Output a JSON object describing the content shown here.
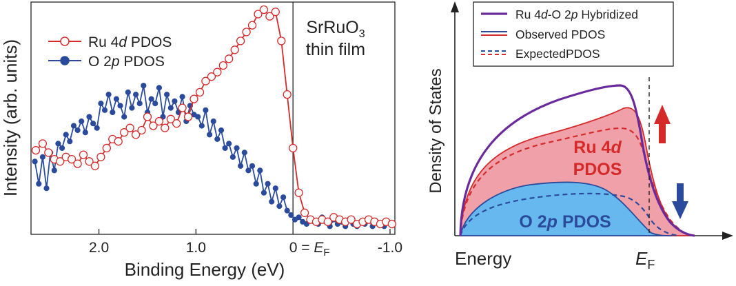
{
  "chart_data": [
    {
      "type": "scatter",
      "ylabel": "Intensity (arb. units)",
      "xlabel": "Binding Energy (eV)",
      "xlim": [
        2.7,
        -1.05
      ],
      "ylim": [
        0,
        1.0
      ],
      "annotation_line1": "SrRuO",
      "annotation_sub": "3",
      "annotation_line2": "thin film",
      "ef_label_prefix": "0 = ",
      "ef_label_E": "E",
      "ef_label_F": "F",
      "xticks": [
        {
          "value": 2.0,
          "label": "2.0"
        },
        {
          "value": 1.0,
          "label": "1.0"
        },
        {
          "value": -1.0,
          "label": "-1.0"
        }
      ],
      "series": [
        {
          "name_prefix": "Ru 4",
          "name_italic": "d",
          "name_suffix": " PDOS",
          "color": "#d42a2a",
          "marker": "open-circle",
          "x": [
            2.65,
            2.58,
            2.52,
            2.46,
            2.4,
            2.34,
            2.28,
            2.22,
            2.16,
            2.1,
            2.04,
            1.98,
            1.92,
            1.86,
            1.8,
            1.74,
            1.68,
            1.62,
            1.56,
            1.5,
            1.44,
            1.38,
            1.32,
            1.26,
            1.2,
            1.14,
            1.08,
            1.02,
            0.96,
            0.9,
            0.84,
            0.78,
            0.72,
            0.66,
            0.6,
            0.54,
            0.48,
            0.42,
            0.36,
            0.3,
            0.24,
            0.18,
            0.12,
            0.06,
            0.0,
            -0.06,
            -0.12,
            -0.18,
            -0.24,
            -0.3,
            -0.36,
            -0.42,
            -0.48,
            -0.54,
            -0.6,
            -0.66,
            -0.72,
            -0.78,
            -0.84,
            -0.9,
            -0.96,
            -1.02
          ],
          "y": [
            0.37,
            0.4,
            0.36,
            0.33,
            0.32,
            0.34,
            0.33,
            0.31,
            0.35,
            0.32,
            0.3,
            0.34,
            0.38,
            0.42,
            0.41,
            0.45,
            0.47,
            0.44,
            0.46,
            0.52,
            0.48,
            0.5,
            0.47,
            0.51,
            0.49,
            0.56,
            0.52,
            0.6,
            0.63,
            0.68,
            0.7,
            0.72,
            0.75,
            0.78,
            0.82,
            0.86,
            0.9,
            0.93,
            0.98,
            1.0,
            0.97,
            0.99,
            0.86,
            0.62,
            0.38,
            0.18,
            0.09,
            0.06,
            0.05,
            0.06,
            0.05,
            0.07,
            0.06,
            0.05,
            0.06,
            0.04,
            0.05,
            0.06,
            0.05,
            0.04,
            0.05,
            0.04
          ]
        },
        {
          "name_prefix": "O 2",
          "name_italic": "p",
          "name_suffix": " PDOS",
          "color": "#2a4a9c",
          "marker": "filled-circle",
          "x": [
            2.66,
            2.62,
            2.58,
            2.54,
            2.5,
            2.46,
            2.42,
            2.38,
            2.34,
            2.3,
            2.26,
            2.22,
            2.18,
            2.14,
            2.1,
            2.06,
            2.02,
            1.98,
            1.94,
            1.9,
            1.86,
            1.82,
            1.78,
            1.74,
            1.7,
            1.66,
            1.62,
            1.58,
            1.54,
            1.5,
            1.46,
            1.42,
            1.38,
            1.34,
            1.3,
            1.26,
            1.22,
            1.18,
            1.14,
            1.1,
            1.06,
            1.02,
            0.98,
            0.94,
            0.9,
            0.86,
            0.82,
            0.78,
            0.74,
            0.7,
            0.66,
            0.62,
            0.58,
            0.54,
            0.5,
            0.46,
            0.42,
            0.38,
            0.34,
            0.3,
            0.26,
            0.22,
            0.18,
            0.14,
            0.1,
            0.06,
            0.02,
            -0.02,
            -0.06,
            -0.1,
            -0.14,
            -0.18,
            -0.22,
            -0.26,
            -0.3,
            -0.34,
            -0.38,
            -0.42,
            -0.46,
            -0.5,
            -0.54,
            -0.58,
            -0.62,
            -0.66,
            -0.7,
            -0.74,
            -0.78,
            -0.82,
            -0.86,
            -0.9,
            -0.94,
            -0.98,
            -1.02
          ],
          "y": [
            0.32,
            0.22,
            0.34,
            0.2,
            0.36,
            0.28,
            0.4,
            0.38,
            0.44,
            0.41,
            0.48,
            0.46,
            0.5,
            0.45,
            0.52,
            0.49,
            0.47,
            0.58,
            0.55,
            0.62,
            0.54,
            0.6,
            0.57,
            0.52,
            0.63,
            0.56,
            0.62,
            0.58,
            0.66,
            0.54,
            0.6,
            0.58,
            0.65,
            0.52,
            0.62,
            0.56,
            0.59,
            0.54,
            0.61,
            0.5,
            0.57,
            0.53,
            0.52,
            0.48,
            0.55,
            0.44,
            0.5,
            0.42,
            0.46,
            0.38,
            0.4,
            0.34,
            0.38,
            0.3,
            0.36,
            0.28,
            0.3,
            0.22,
            0.28,
            0.18,
            0.22,
            0.14,
            0.2,
            0.12,
            0.16,
            0.1,
            0.08,
            0.06,
            0.07,
            0.05,
            0.04,
            0.06,
            0.05,
            0.04,
            0.07,
            0.05,
            0.03,
            0.06,
            0.04,
            0.05,
            0.03,
            0.06,
            0.04,
            0.03,
            0.05,
            0.04,
            0.06,
            0.03,
            0.05,
            0.04,
            0.03,
            0.05,
            0.04
          ]
        }
      ]
    },
    {
      "type": "area",
      "ylabel": "Density of States",
      "xlabel": "Energy",
      "ef_E": "E",
      "ef_F": "F",
      "ru_label_line1_prefix": "Ru 4",
      "ru_label_line1_italic": "d",
      "ru_label_line2": "PDOS",
      "o_label_prefix": "O 2",
      "o_label_italic": "p",
      "o_label_suffix": " PDOS",
      "legend": [
        {
          "prefix": "Ru 4",
          "i1": "d",
          "mid": "-O 2",
          "i2": "p",
          "suffix": " Hybridized",
          "color": "#6a2a9c",
          "style": "solid-thick"
        },
        {
          "prefix": "Observed PDOS",
          "i1": "",
          "mid": "",
          "i2": "",
          "suffix": "",
          "color": "#2a4a9c",
          "color2": "#d42a2a",
          "style": "solid-double"
        },
        {
          "prefix": "ExpectedPDOS",
          "i1": "",
          "mid": "",
          "i2": "",
          "suffix": "",
          "color": "#2a4a9c",
          "color2": "#d42a2a",
          "style": "dashed-double"
        }
      ],
      "colors": {
        "hybrid": "#6a2a9c",
        "ru_fill": "#f0a0a8",
        "ru_line": "#d42a2a",
        "o_fill": "#66b8ee",
        "o_line": "#2a4a9c",
        "arrow_up": "#d42a2a",
        "arrow_down": "#2a4a9c"
      }
    }
  ]
}
